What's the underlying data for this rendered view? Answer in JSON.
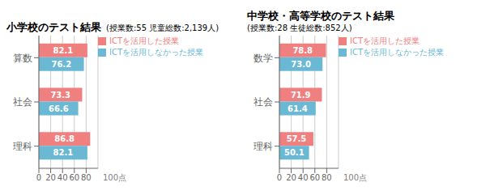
{
  "chart_data": [
    {
      "type": "bar",
      "orientation": "horizontal",
      "title": "小学校のテスト結果",
      "subtitle": "(授業数:55 児童総数:2,139人)",
      "categories": [
        "算数",
        "社会",
        "理科"
      ],
      "series": [
        {
          "name": "ICTを活用した授業",
          "color": "#F08080",
          "values": [
            82.1,
            73.3,
            86.8
          ]
        },
        {
          "name": "ICTを活用しなかった授業",
          "color": "#6BB8D4",
          "values": [
            76.2,
            66.6,
            82.1
          ]
        }
      ],
      "xlim": [
        0,
        100
      ],
      "xticks": [
        0,
        20,
        40,
        60,
        80
      ],
      "xlabel": "100点",
      "grid": true,
      "legend": "upper right",
      "data_labels": true
    },
    {
      "type": "bar",
      "orientation": "horizontal",
      "title": "中学校・高等学校のテスト結果",
      "subtitle": "(授業数:28 生徒総数:852人)",
      "categories": [
        "数学",
        "社会",
        "理科"
      ],
      "series": [
        {
          "name": "ICTを活用した授業",
          "color": "#F08080",
          "values": [
            78.8,
            71.9,
            57.5
          ]
        },
        {
          "name": "ICTを活用しなかった授業",
          "color": "#6BB8D4",
          "values": [
            73.0,
            61.4,
            50.1
          ],
          "value_labels": [
            "73.0",
            "61.4",
            "50.1"
          ]
        }
      ],
      "xlim": [
        0,
        100
      ],
      "xticks": [
        0,
        20,
        40,
        60,
        80
      ],
      "xlabel": "100点",
      "grid": true,
      "legend": "upper right",
      "data_labels": true
    }
  ]
}
